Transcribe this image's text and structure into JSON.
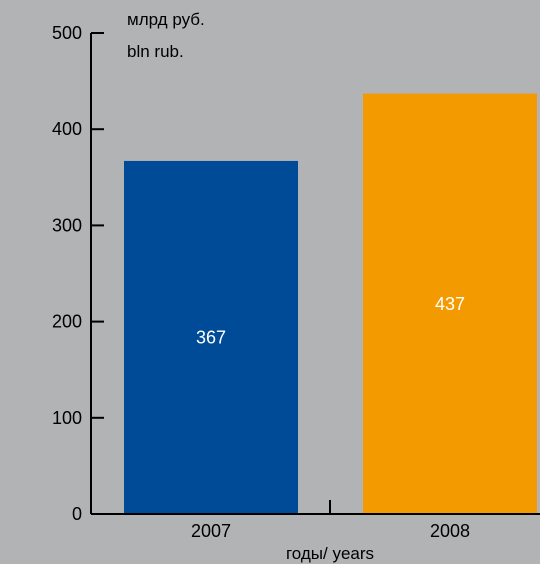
{
  "chart_data": {
    "type": "bar",
    "categories": [
      "2007",
      "2008"
    ],
    "values": [
      367,
      437
    ],
    "value_labels": [
      "367",
      "437"
    ],
    "ylabel_line1": "млрд руб.",
    "ylabel_line2": "bln rub.",
    "xlabel": "годы/ years",
    "ylim": [
      0,
      500
    ],
    "y_ticks": [
      0,
      100,
      200,
      300,
      400,
      500
    ],
    "y_tick_labels": [
      "0",
      "100",
      "200",
      "300",
      "400",
      "500"
    ],
    "bar_colors": [
      "#004b97",
      "#f29a00"
    ],
    "value_label_color": "#ffffff",
    "background": "#b2b3b5",
    "grid": false,
    "legend": "none"
  }
}
